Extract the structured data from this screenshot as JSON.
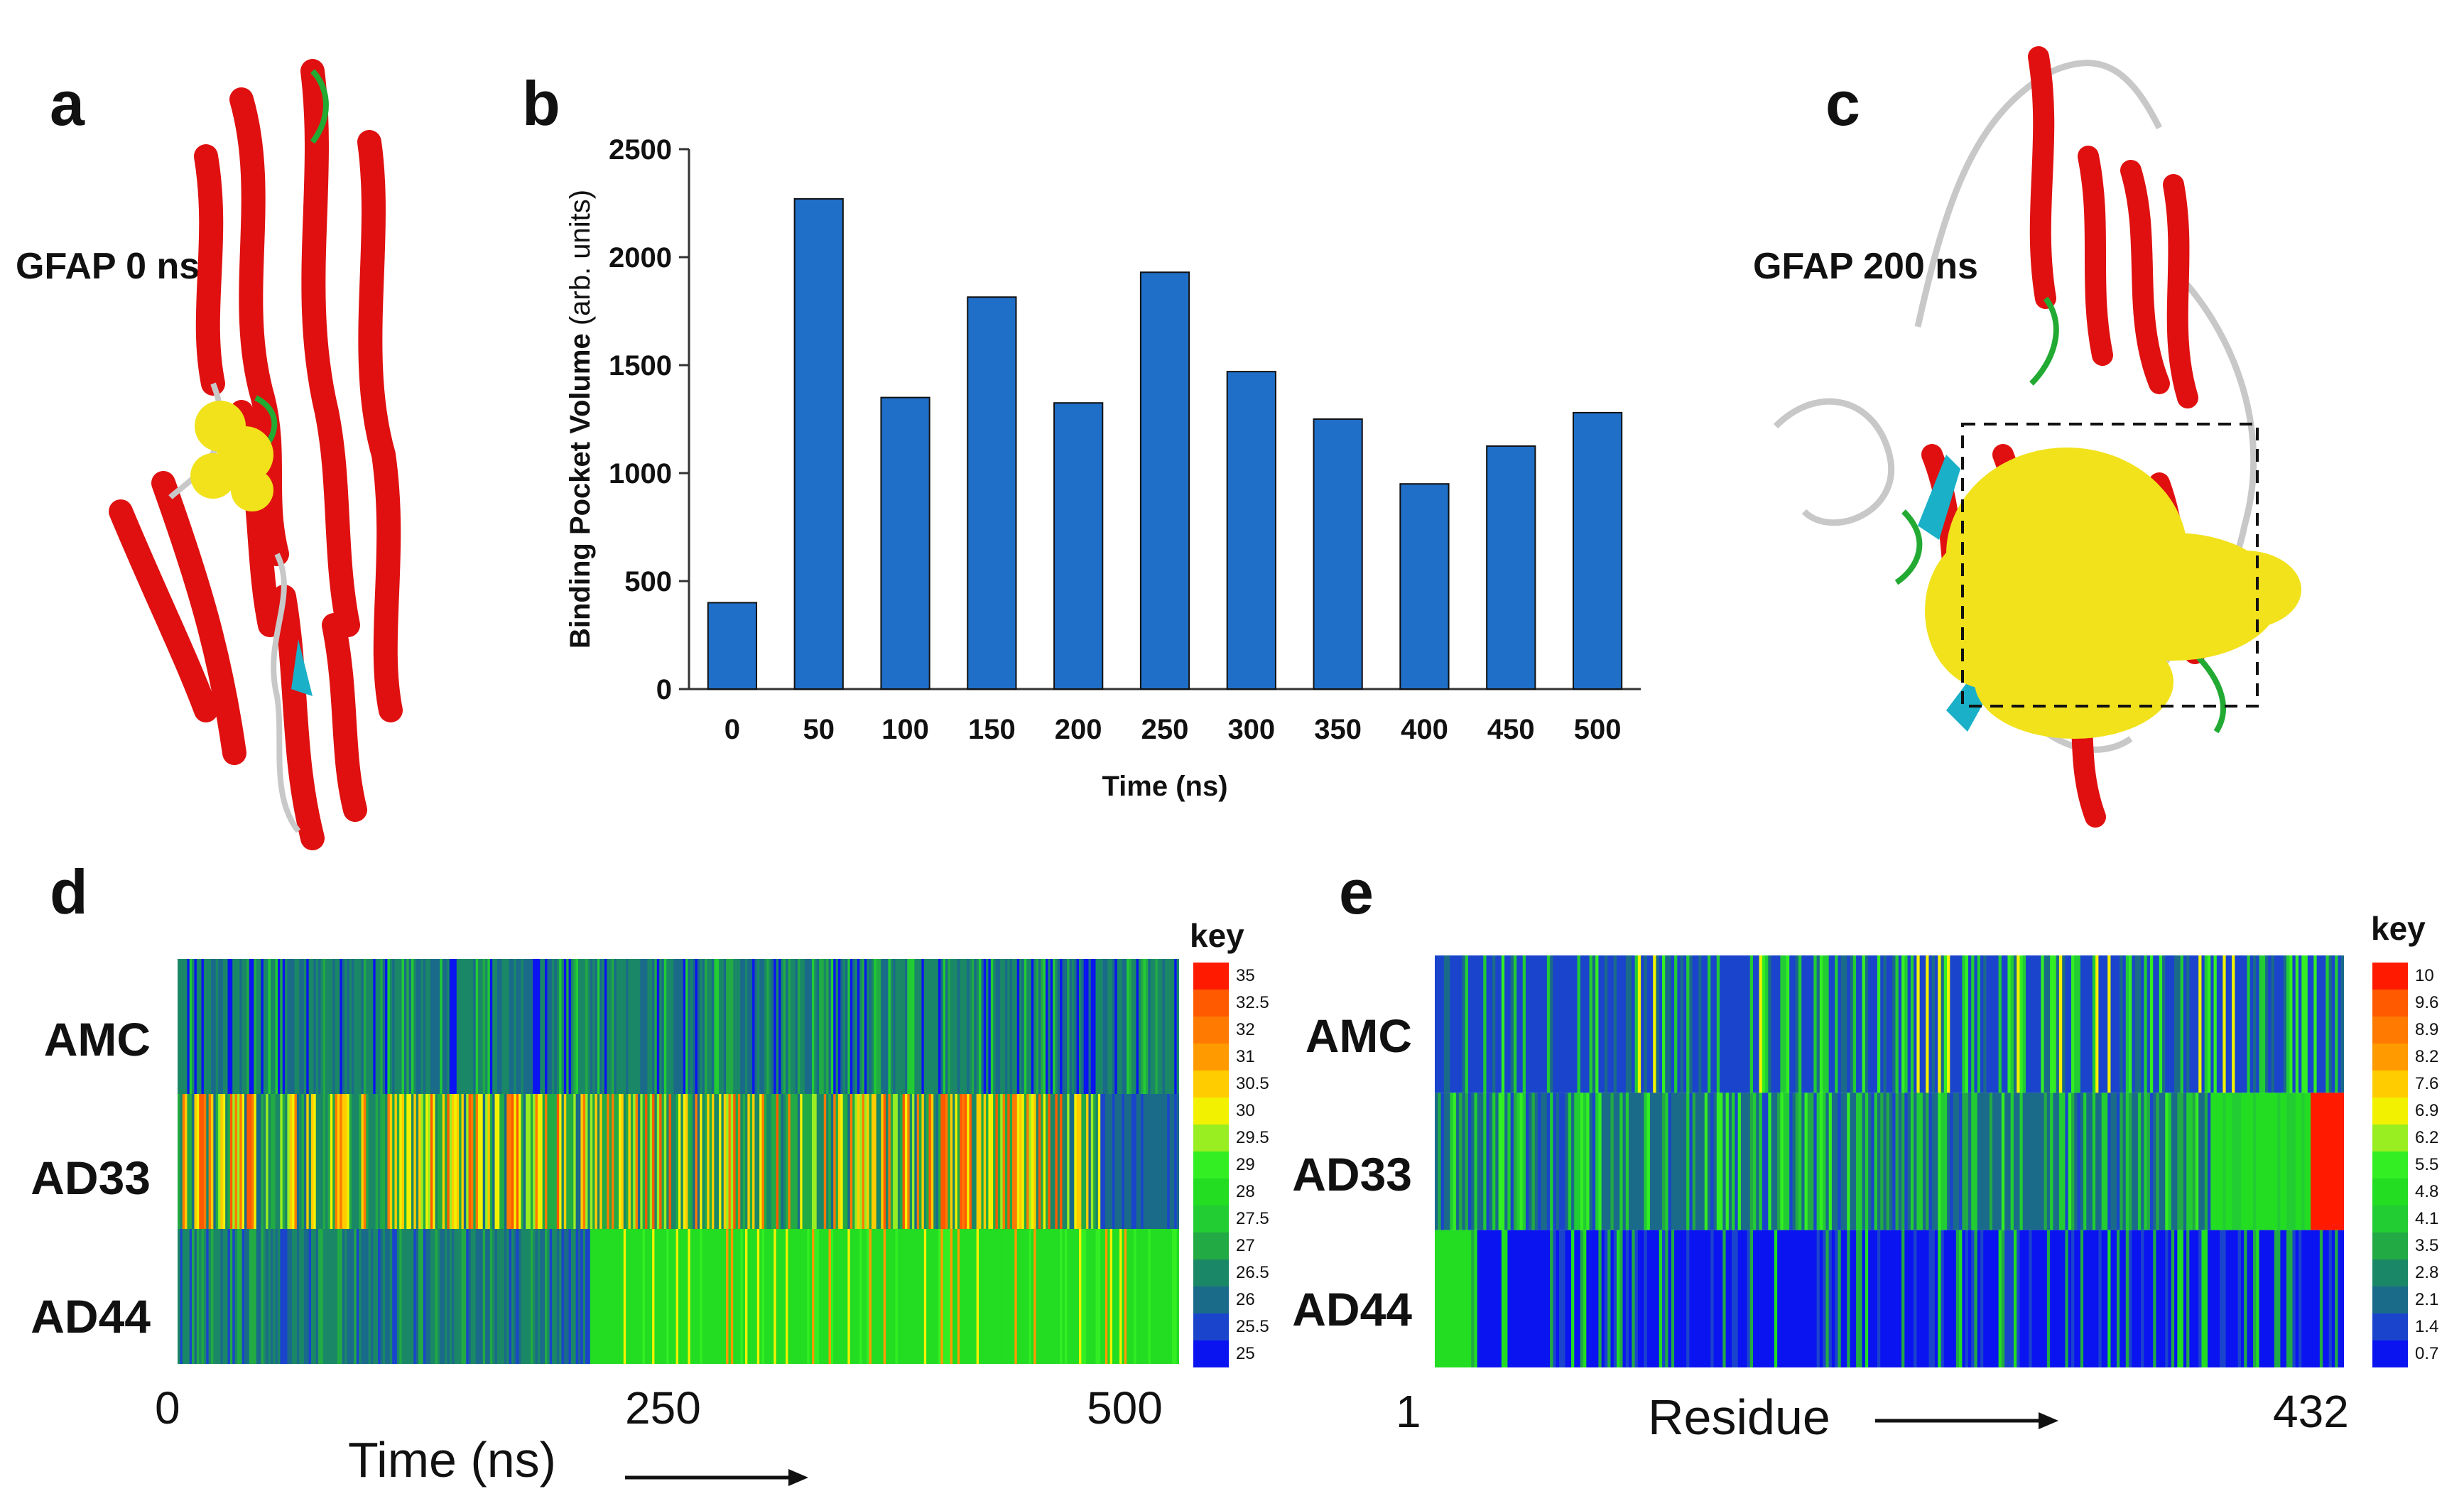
{
  "panels": {
    "a": {
      "label": "a",
      "structure_label": "GFAP 0 ns"
    },
    "b": {
      "label": "b"
    },
    "c": {
      "label": "c",
      "structure_label": "GFAP 200 ns"
    },
    "d": {
      "label": "d",
      "key_title": "key",
      "row_labels": [
        "AMC",
        "AD33",
        "AD44"
      ],
      "x_start": "0",
      "x_mid": "250",
      "x_end": "500",
      "x_title": "Time (ns)",
      "key_values": [
        "35",
        "32.5",
        "32",
        "31",
        "30.5",
        "30",
        "29.5",
        "29",
        "28",
        "27.5",
        "27",
        "26.5",
        "26",
        "25.5",
        "25"
      ]
    },
    "e": {
      "label": "e",
      "key_title": "key",
      "row_labels": [
        "AMC",
        "AD33",
        "AD44"
      ],
      "x_start": "1",
      "x_end": "432",
      "x_title": "Residue",
      "key_values": [
        "10",
        "9.6",
        "8.9",
        "8.2",
        "7.6",
        "6.9",
        "6.2",
        "5.5",
        "4.8",
        "4.1",
        "3.5",
        "2.8",
        "2.1",
        "1.4",
        "0.7"
      ]
    }
  },
  "colors": {
    "bar": "#1f6fc8",
    "helix": "#e01010",
    "surface": "#f2e21c",
    "turn": "#22aa33",
    "strand": "#1ab0c8",
    "coil": "#c8c8c8",
    "key_scale": [
      "#ff1a00",
      "#ff5a00",
      "#ff7a00",
      "#ff9a00",
      "#ffcc00",
      "#f2f200",
      "#99ee22",
      "#33ee22",
      "#22dd22",
      "#22cc33",
      "#22aa44",
      "#1a8866",
      "#1a6a8a",
      "#1a44cc",
      "#0a14f0"
    ]
  },
  "chart_data": [
    {
      "type": "bar",
      "title": "",
      "xlabel": "Time (ns)",
      "ylabel": "Binding Pocket Volume",
      "ylabel_suffix": "(arb. units)",
      "categories": [
        "0",
        "50",
        "100",
        "150",
        "200",
        "250",
        "300",
        "350",
        "400",
        "450",
        "500"
      ],
      "values": [
        400,
        2270,
        1350,
        1815,
        1325,
        1930,
        1470,
        1250,
        950,
        1125,
        1280
      ],
      "ylim": [
        0,
        2500
      ],
      "yticks": [
        "0",
        "500",
        "1000",
        "1500",
        "2000",
        "2500"
      ]
    }
  ]
}
